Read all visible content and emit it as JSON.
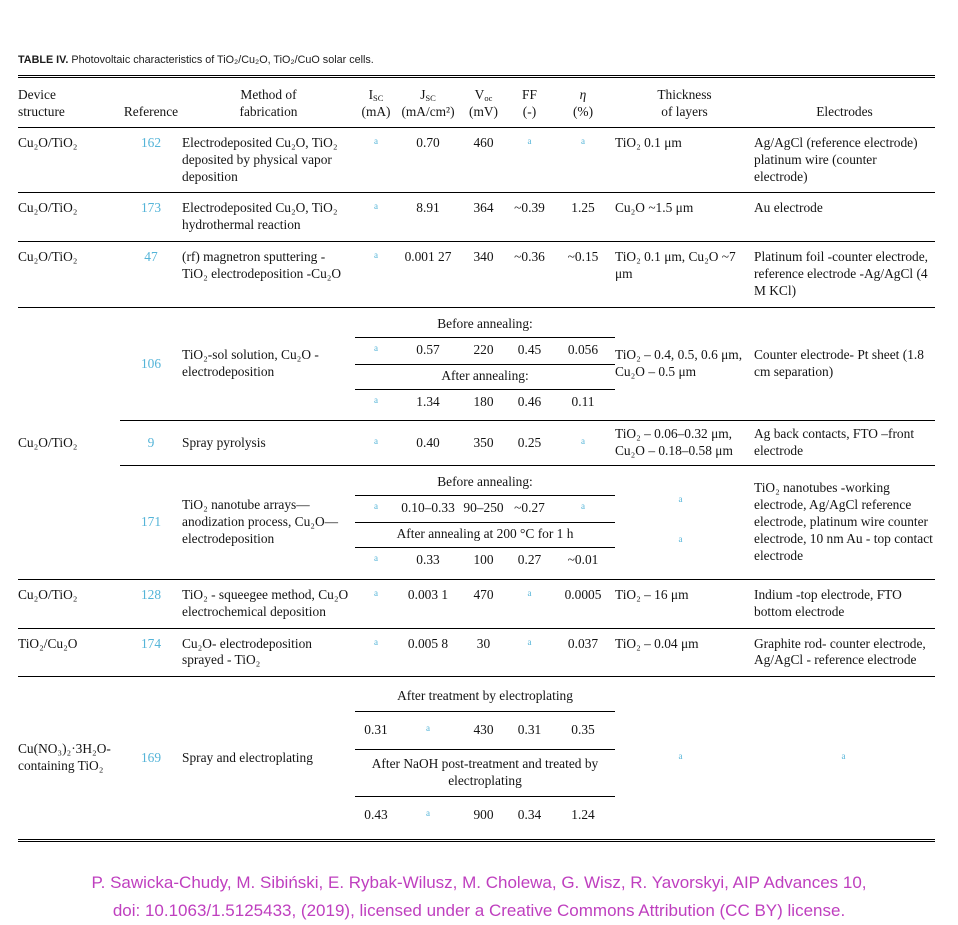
{
  "colors": {
    "reference_link": "#54b4d8",
    "footnote_marker": "#54b4d8",
    "citation_text": "#bf3fbf"
  },
  "footnote_marker": "a",
  "caption": {
    "label": "TABLE IV.",
    "rest": " Photovoltaic characteristics of TiO₂/Cu₂O, TiO₂/CuO solar cells."
  },
  "header": {
    "device_l1": "Device",
    "device_l2": "structure",
    "reference": "Reference",
    "method_l1": "Method of",
    "method_l2": "fabrication",
    "isc_sym": "I",
    "isc_sub": "SC",
    "isc_unit": "(mA)",
    "jsc_sym": "J",
    "jsc_sub": "SC",
    "jsc_unit": "(mA/cm²)",
    "voc_sym": "V",
    "voc_sub": "oc",
    "voc_unit": "(mV)",
    "ff": "FF",
    "ff_unit": "(-)",
    "eta": "η",
    "eta_unit": "(%)",
    "thickness_l1": "Thickness",
    "thickness_l2": "of layers",
    "electrodes": "Electrodes"
  },
  "rows": {
    "r162": {
      "device": "Cu₂O/TiO₂",
      "ref": "162",
      "method": "Electrodeposited Cu₂O, TiO₂ deposited by physical vapor deposition",
      "jsc": "0.70",
      "voc": "460",
      "thickness": "TiO₂ 0.1 μm",
      "electrodes": "Ag/AgCl (reference electrode) platinum wire (counter electrode)"
    },
    "r173": {
      "device": "Cu₂O/TiO₂",
      "ref": "173",
      "method": "Electrodeposited Cu₂O, TiO₂ hydrothermal reaction",
      "jsc": "8.91",
      "voc": "364",
      "ff": "~0.39",
      "eta": "1.25",
      "thickness": "Cu₂O ~1.5 μm",
      "electrodes": "Au electrode"
    },
    "r47": {
      "device": "Cu₂O/TiO₂",
      "ref": "47",
      "method": "(rf) magnetron sputtering -TiO₂ electrodeposition -Cu₂O",
      "jsc": "0.001 27",
      "voc": "340",
      "ff": "~0.36",
      "eta": "~0.15",
      "thickness": "TiO₂ 0.1 μm, Cu₂O ~7 μm",
      "electrodes": "Platinum foil -counter electrode, reference electrode -Ag/AgCl (4 M KCl)"
    },
    "group1": {
      "device": "Cu₂O/TiO₂",
      "r106": {
        "ref": "106",
        "method": "TiO₂-sol solution, Cu₂O -electrodeposition",
        "label_before": "Before annealing:",
        "before": {
          "jsc": "0.57",
          "voc": "220",
          "ff": "0.45",
          "eta": "0.056"
        },
        "label_after": "After annealing:",
        "after": {
          "jsc": "1.34",
          "voc": "180",
          "ff": "0.46",
          "eta": "0.11"
        },
        "thickness": "TiO₂ – 0.4, 0.5, 0.6 μm, Cu₂O – 0.5 μm",
        "electrodes": "Counter electrode- Pt sheet (1.8 cm separation)"
      },
      "r9": {
        "ref": "9",
        "method": "Spray pyrolysis",
        "jsc": "0.40",
        "voc": "350",
        "ff": "0.25",
        "thickness": "TiO₂ – 0.06–0.32 μm, Cu₂O – 0.18–0.58 μm",
        "electrodes": "Ag back contacts, FTO –front electrode"
      },
      "r171": {
        "ref": "171",
        "method": "TiO₂ nanotube arrays—anodization process, Cu₂O—electrodeposition",
        "label_before": "Before annealing:",
        "before": {
          "jsc": "0.10–0.33",
          "voc": "90–250",
          "ff": "~0.27"
        },
        "label_after": "After annealing at 200 °C for 1 h",
        "after": {
          "jsc": "0.33",
          "voc": "100",
          "ff": "0.27",
          "eta": "~0.01"
        },
        "electrodes": "TiO₂ nanotubes -working electrode, Ag/AgCl reference electrode, platinum wire counter electrode, 10 nm Au - top contact electrode"
      }
    },
    "r128": {
      "device": "Cu₂O/TiO₂",
      "ref": "128",
      "method": "TiO₂ - squeegee method, Cu₂O electrochemical deposition",
      "jsc": "0.003 1",
      "voc": "470",
      "eta": "0.0005",
      "thickness": "TiO₂ – 16 μm",
      "electrodes": "Indium -top electrode, FTO bottom electrode"
    },
    "r174": {
      "device": "TiO₂/Cu₂O",
      "ref": "174",
      "method": "Cu₂O- electrodeposition sprayed - TiO₂",
      "jsc": "0.005 8",
      "voc": "30",
      "eta": "0.037",
      "thickness": "TiO₂ – 0.04 μm",
      "electrodes": "Graphite rod- counter electrode, Ag/AgCl - reference electrode"
    },
    "group2": {
      "device": "Cu(NO₃)₂·3H₂O-containing TiO₂",
      "r169": {
        "ref": "169",
        "method": "Spray and electroplating",
        "label_first": "After treatment by electroplating",
        "first": {
          "isc": "0.31",
          "voc": "430",
          "ff": "0.31",
          "eta": "0.35"
        },
        "label_second": "After NaOH post-treatment and treated by electroplating",
        "second": {
          "isc": "0.43",
          "voc": "900",
          "ff": "0.34",
          "eta": "1.24"
        }
      }
    }
  },
  "citation": {
    "line1": "P. Sawicka-Chudy, M. Sibiński, E. Rybak-Wilusz, M. Cholewa, G. Wisz, R. Yavorskyi, AIP Advances 10,",
    "line2": "doi: 10.1063/1.5125433, (2019), licensed under a Creative Commons Attribution (CC BY) license."
  }
}
